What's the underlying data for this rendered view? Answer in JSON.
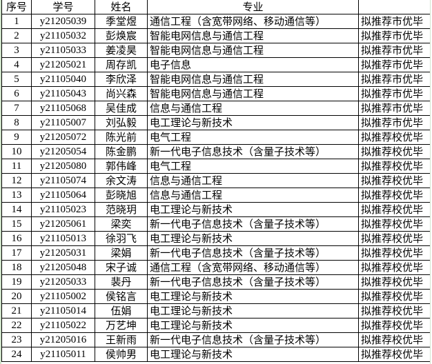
{
  "headers": [
    "序号",
    "学号",
    "姓名",
    "专业",
    ""
  ],
  "rows": [
    [
      "1",
      "y21205039",
      "季堂煜",
      "通信工程（含宽带网络、移动通信等）",
      "拟推荐市优毕"
    ],
    [
      "2",
      "y21105032",
      "彭焕宸",
      "智能电网信息与通信工程",
      "拟推荐市优毕"
    ],
    [
      "3",
      "y21105033",
      "姜凌昊",
      "智能电网信息与通信工程",
      "拟推荐市优毕"
    ],
    [
      "4",
      "y21205021",
      "周存凯",
      "电子信息",
      "拟推荐市优毕"
    ],
    [
      "5",
      "y21105040",
      "李欣泽",
      "智能电网信息与通信工程",
      "拟推荐市优毕"
    ],
    [
      "6",
      "y21105043",
      "尚兴森",
      "智能电网信息与通信工程",
      "拟推荐市优毕"
    ],
    [
      "7",
      "y21105068",
      "吴佳成",
      "信息与通信工程",
      "拟推荐市优毕"
    ],
    [
      "8",
      "y21105007",
      "刘弘毅",
      "电工理论与新技术",
      "拟推荐市优毕"
    ],
    [
      "9",
      "y21205072",
      "陈光前",
      "电气工程",
      "拟推荐校优毕"
    ],
    [
      "10",
      "y21205054",
      "陈金鹏",
      "新一代电子信息技术（含量子技术等）",
      "拟推荐校优毕"
    ],
    [
      "11",
      "y21205080",
      "郭伟峰",
      "电气工程",
      "拟推荐校优毕"
    ],
    [
      "12",
      "y21105074",
      "余文涛",
      "信息与通信工程",
      "拟推荐校优毕"
    ],
    [
      "13",
      "y21105064",
      "彭晓旭",
      "信息与通信工程",
      "拟推荐校优毕"
    ],
    [
      "14",
      "y21105023",
      "范晓玥",
      "电工理论与新技术",
      "拟推荐校优毕"
    ],
    [
      "15",
      "y21205061",
      "梁奕",
      "新一代电子信息技术（含量子技术等）",
      "拟推荐校优毕"
    ],
    [
      "16",
      "y21105013",
      "徐羽飞",
      "电工理论与新技术",
      "拟推荐校优毕"
    ],
    [
      "17",
      "y21205031",
      "梁娟",
      "新一代电子信息技术（含量子技术等）",
      "拟推荐校优毕"
    ],
    [
      "18",
      "y21205048",
      "宋子诚",
      "通信工程（含宽带网络、移动通信等）",
      "拟推荐校优毕"
    ],
    [
      "19",
      "y21205033",
      "裴丹",
      "新一代电子信息技术（含量子技术等）",
      "拟推荐校优毕"
    ],
    [
      "20",
      "y21105002",
      "侯铭言",
      "电工理论与新技术",
      "拟推荐校优毕"
    ],
    [
      "21",
      "y21105014",
      "伍娟",
      "电工理论与新技术",
      "拟推荐校优毕"
    ],
    [
      "22",
      "y21105022",
      "万艺坤",
      "电工理论与新技术",
      "拟推荐校优毕"
    ],
    [
      "23",
      "y21205016",
      "王新雨",
      "新一代电子信息技术（含量子技术等）",
      "拟推荐校优毕"
    ],
    [
      "24",
      "y21105011",
      "侯帅男",
      "电工理论与新技术",
      "拟推荐校优毕"
    ]
  ]
}
